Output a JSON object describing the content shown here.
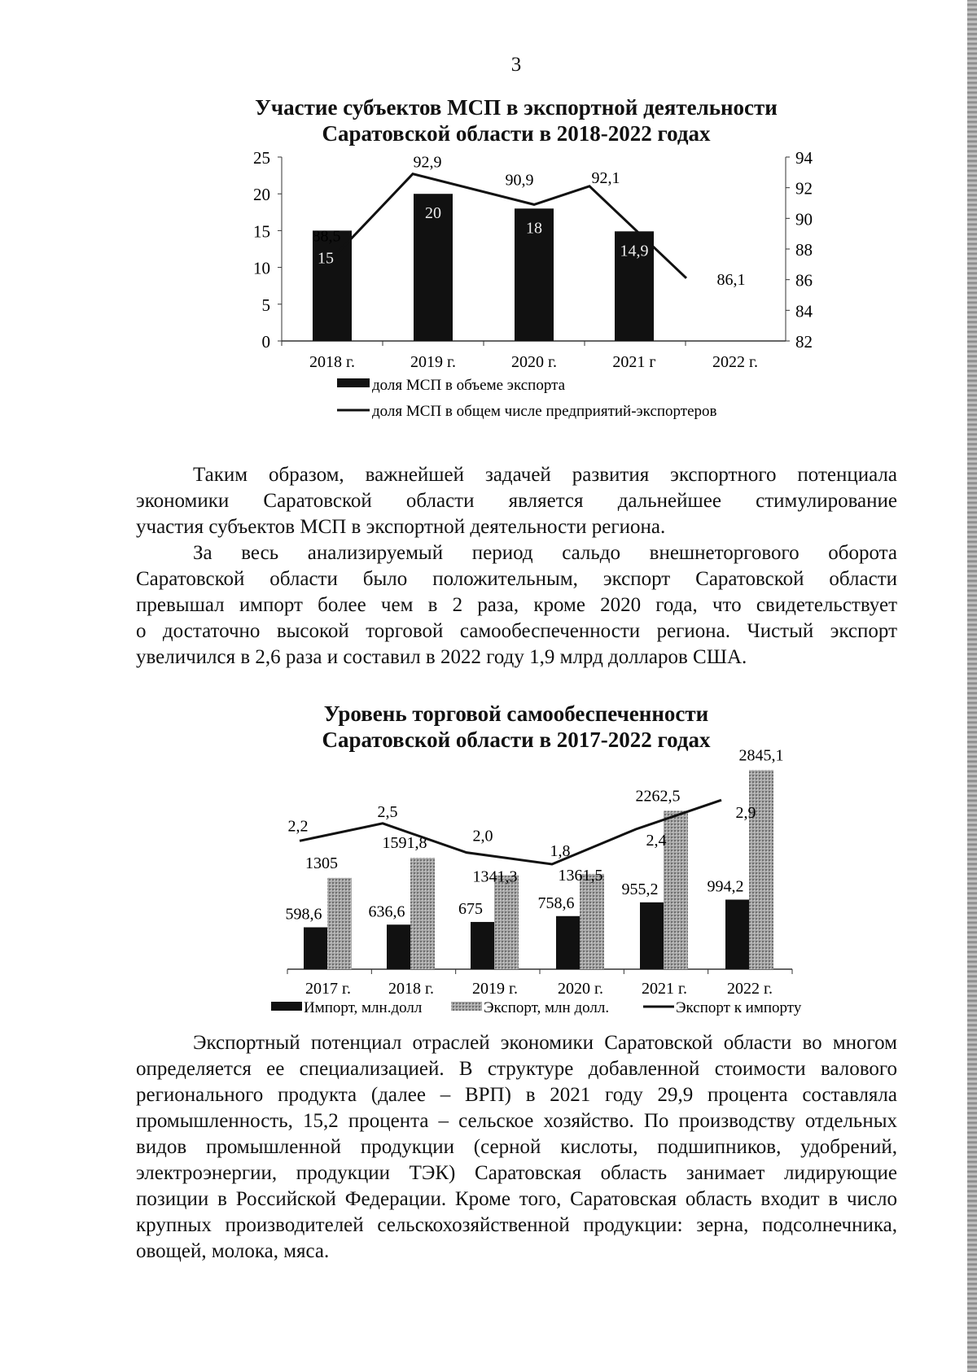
{
  "page_number": "3",
  "paragraphs": [
    {
      "lines": [
        "Таким образом, важнейшей задачей развития экспортного потенциала",
        "экономики Саратовской области является дальнейшее стимулирование",
        "участия субъектов МСП в экспортной деятельности региона."
      ]
    },
    {
      "lines": [
        "За весь анализируемый период сальдо внешнеторгового оборота",
        "Саратовской области было положительным, экспорт Саратовской области",
        "превышал импорт более чем в 2 раза, кроме 2020 года, что свидетельствует",
        "о достаточно высокой торговой самообеспеченности региона. Чистый экспорт",
        "увеличился в 2,6 раза и составил в 2022 году 1,9 млрд долларов США."
      ]
    },
    {
      "lines": [
        "Экспортный потенциал отраслей экономики Саратовской области во многом",
        "определяется ее специализацией. В структуре добавленной стоимости валового",
        "регионального продукта (далее – ВРП) в 2021 году 29,9 процента составляла",
        "промышленность, 15,2 процента – сельское хозяйство. По производству отдельных",
        "видов промышленной продукции (серной кислоты, подшипников, удобрений,",
        "электроэнергии, продукции ТЭК) Саратовская область занимает лидирующие",
        "позиции в Российской Федерации. Кроме того, Саратовская область входит в число",
        "крупных производителей сельскохозяйственной продукции: зерна, подсолнечника,",
        "овощей, молока, мяса."
      ]
    }
  ],
  "chart_data": [
    {
      "type": "bar+line",
      "title": [
        "Участие субъектов МСП в экспортной деятельности",
        "Саратовской области в 2018-2022 годах"
      ],
      "categories": [
        "2018 г.",
        "2019 г.",
        "2020 г.",
        "2021 г",
        "2022 г."
      ],
      "y_left": {
        "range": [
          0,
          25
        ],
        "ticks": [
          "0",
          "5",
          "10",
          "15",
          "20",
          "25"
        ]
      },
      "y_right": {
        "range": [
          82,
          94
        ],
        "ticks": [
          "82",
          "84",
          "86",
          "88",
          "90",
          "92",
          "94"
        ]
      },
      "series": [
        {
          "name": "доля МСП в объеме экспорта",
          "kind": "bar",
          "axis": "left",
          "color": "#111111",
          "values": [
            15,
            20,
            18,
            14.9,
            null
          ],
          "labels": [
            "15",
            "20",
            "18",
            "14,9",
            ""
          ]
        },
        {
          "name": "доля МСП в общем числе предприятий-экспортеров",
          "kind": "line",
          "axis": "right",
          "color": "#111111",
          "values": [
            88.5,
            92.9,
            90.9,
            92.1,
            86.1
          ],
          "labels": [
            "88,5",
            "92,9",
            "90,9",
            "92,1",
            "86,1"
          ]
        }
      ],
      "legend": "bottom",
      "grid": false
    },
    {
      "type": "bar+line",
      "title": [
        "Уровень торговой самообеспеченности",
        "Саратовской области в 2017-2022 годах"
      ],
      "categories": [
        "2017 г.",
        "2018 г.",
        "2019 г.",
        "2020 г.",
        "2021 г.",
        "2022 г."
      ],
      "y_left": {
        "range": [
          0,
          3000
        ],
        "ticks_shown": false
      },
      "y_right": {
        "range": [
          0,
          3.6
        ],
        "ticks_shown": false
      },
      "series": [
        {
          "name": "Импорт, млн.долл",
          "kind": "bar",
          "axis": "left",
          "color": "#111111",
          "values": [
            598.6,
            636.6,
            675,
            758.6,
            955.2,
            994.2
          ],
          "labels": [
            "598,6",
            "636,6",
            "675",
            "758,6",
            "955,2",
            "994,2"
          ]
        },
        {
          "name": "Экспорт, млн долл.",
          "kind": "bar",
          "axis": "left",
          "color": "#9a9a9a",
          "values": [
            1305,
            1591.8,
            1341.3,
            1361.5,
            2262.5,
            2845.1
          ],
          "labels": [
            "1305",
            "1591,8",
            "1341,3",
            "1361,5",
            "2262,5",
            "2845,1"
          ]
        },
        {
          "name": "Экспорт к импорту",
          "kind": "line",
          "axis": "right",
          "color": "#111111",
          "values": [
            2.2,
            2.5,
            2.0,
            1.8,
            2.4,
            2.9
          ],
          "labels": [
            "2,2",
            "2,5",
            "2,0",
            "1,8",
            "2,4",
            "2,9"
          ]
        }
      ],
      "legend": "bottom",
      "grid": false
    }
  ]
}
